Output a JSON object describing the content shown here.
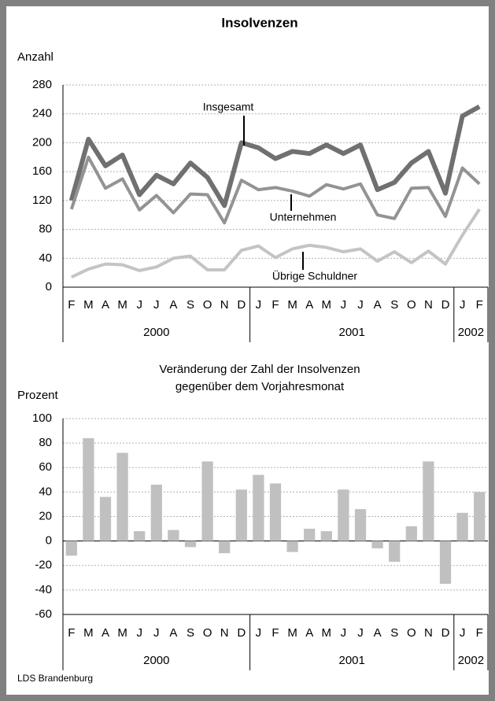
{
  "chart_data": [
    {
      "type": "line",
      "title": "Insolvenzen",
      "y_label": "Anzahl",
      "categories": [
        "F",
        "M",
        "A",
        "M",
        "J",
        "J",
        "A",
        "S",
        "O",
        "N",
        "D",
        "J",
        "F",
        "M",
        "A",
        "M",
        "J",
        "J",
        "A",
        "S",
        "O",
        "N",
        "D",
        "J",
        "F"
      ],
      "years": [
        "2000",
        "2001",
        "2002"
      ],
      "ylim": [
        0,
        280
      ],
      "yticks": [
        0,
        40,
        80,
        120,
        160,
        200,
        240,
        280
      ],
      "grid": true,
      "series": [
        {
          "name": "Insgesamt",
          "color": "#707070",
          "values": [
            120,
            205,
            168,
            183,
            128,
            155,
            143,
            172,
            152,
            113,
            200,
            193,
            178,
            188,
            185,
            197,
            185,
            197,
            135,
            145,
            172,
            188,
            130,
            237,
            250
          ]
        },
        {
          "name": "Unternehmen",
          "color": "#939393",
          "values": [
            108,
            180,
            137,
            150,
            107,
            127,
            103,
            129,
            128,
            89,
            148,
            135,
            138,
            133,
            126,
            142,
            136,
            143,
            100,
            95,
            137,
            138,
            98,
            165,
            143
          ]
        },
        {
          "name": "Übrige Schuldner",
          "color": "#c4c4c4",
          "values": [
            14,
            25,
            32,
            31,
            23,
            28,
            40,
            43,
            24,
            24,
            51,
            57,
            41,
            53,
            58,
            55,
            49,
            53,
            36,
            49,
            34,
            50,
            32,
            72,
            108
          ]
        }
      ]
    },
    {
      "type": "bar",
      "title": "Veränderung der Zahl der Insolvenzen",
      "subtitle": "gegenüber dem Vorjahresmonat",
      "y_label": "Prozent",
      "categories": [
        "F",
        "M",
        "A",
        "M",
        "J",
        "J",
        "A",
        "S",
        "O",
        "N",
        "D",
        "J",
        "F",
        "M",
        "A",
        "M",
        "J",
        "J",
        "A",
        "S",
        "O",
        "N",
        "D",
        "J",
        "F"
      ],
      "years": [
        "2000",
        "2001",
        "2002"
      ],
      "ylim": [
        -60,
        100
      ],
      "yticks": [
        -60,
        -40,
        -20,
        0,
        20,
        40,
        60,
        80,
        100
      ],
      "grid": true,
      "color": "#c0c0c0",
      "values": [
        -12,
        84,
        36,
        72,
        8,
        46,
        9,
        -5,
        65,
        -10,
        42,
        54,
        47,
        -9,
        10,
        8,
        42,
        26,
        -6,
        -17,
        12,
        65,
        -35,
        23,
        40
      ]
    }
  ],
  "source": "LDS Brandenburg"
}
